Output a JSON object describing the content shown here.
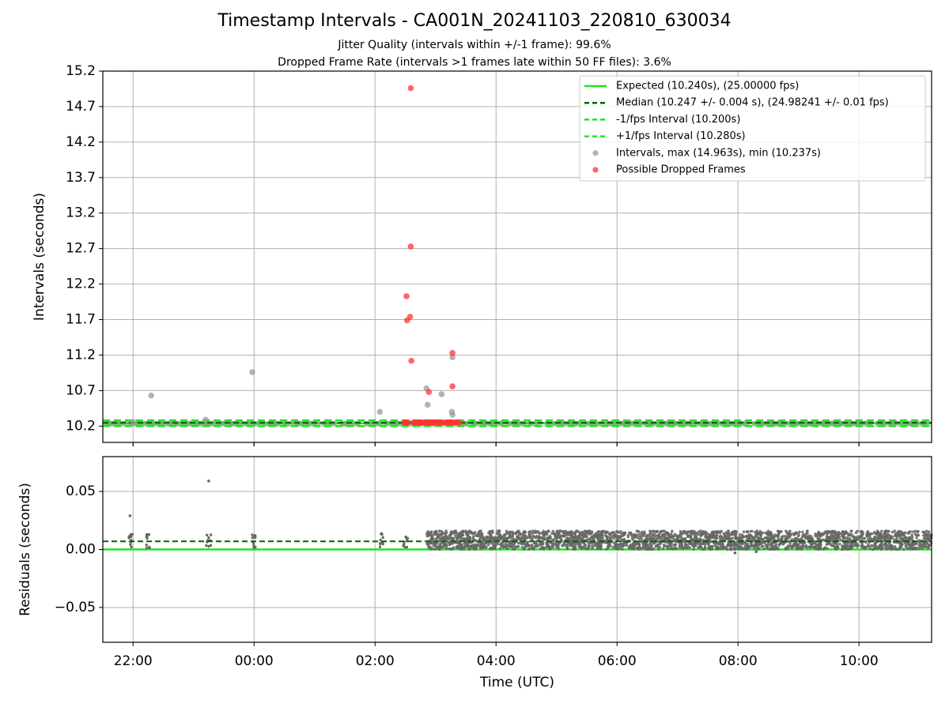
{
  "title": "Timestamp Intervals - CA001N_20241103_220810_630034",
  "subtitle_1": "Jitter Quality (intervals within +/-1 frame): 99.6%",
  "subtitle_2": "Dropped Frame Rate (intervals >1 frames late within 50 FF files): 3.6%",
  "colors": {
    "expected": "#19e619",
    "median": "#006400",
    "bounds": "#19e619",
    "intervals": "#999999",
    "dropped": "#ff3333",
    "residuals": "#666666"
  },
  "chart_data": [
    {
      "type": "scatter",
      "xlabel": "",
      "ylabel": "Intervals (seconds)",
      "xlim": [
        -2.5,
        11.2
      ],
      "ylim": [
        9.97,
        15.2
      ],
      "x_ticks": [
        -2,
        0,
        2,
        4,
        6,
        8,
        10
      ],
      "x_tick_labels": [
        "22:00",
        "00:00",
        "02:00",
        "04:00",
        "06:00",
        "08:00",
        "10:00"
      ],
      "y_ticks": [
        10.2,
        10.7,
        11.2,
        11.7,
        12.2,
        12.7,
        13.2,
        13.7,
        14.2,
        14.7,
        15.2
      ],
      "y_tick_labels": [
        "10.2",
        "10.7",
        "11.2",
        "11.7",
        "12.2",
        "12.7",
        "13.2",
        "13.7",
        "14.2",
        "14.7",
        "15.2"
      ],
      "grid": true,
      "legend_position": "top-right",
      "legend": [
        "Expected (10.240s), (25.00000 fps)",
        "Median (10.247 +/- 0.004 s), (24.98241 +/- 0.01 fps)",
        "-1/fps Interval (10.200s)",
        "+1/fps Interval (10.280s)",
        "Intervals, max (14.963s), min (10.237s)",
        "Possible Dropped Frames"
      ],
      "lines": {
        "expected": 10.24,
        "median": 10.247,
        "minus_1_fps": 10.2,
        "plus_1_fps": 10.28
      },
      "intervals_outliers": [
        {
          "x": -1.7,
          "y": 10.63
        },
        {
          "x": -2.0,
          "y": 10.26
        },
        {
          "x": -0.8,
          "y": 10.29
        },
        {
          "x": -0.03,
          "y": 10.96
        },
        {
          "x": 2.08,
          "y": 10.4
        },
        {
          "x": 2.85,
          "y": 10.73
        },
        {
          "x": 2.87,
          "y": 10.5
        },
        {
          "x": 3.1,
          "y": 10.65
        },
        {
          "x": 3.27,
          "y": 10.4
        },
        {
          "x": 3.28,
          "y": 10.36
        },
        {
          "x": 3.28,
          "y": 11.17
        }
      ],
      "dropped_frames": [
        {
          "x": 2.59,
          "y": 14.96
        },
        {
          "x": 2.59,
          "y": 12.73
        },
        {
          "x": 2.52,
          "y": 12.03
        },
        {
          "x": 2.58,
          "y": 11.74
        },
        {
          "x": 2.53,
          "y": 11.69
        },
        {
          "x": 3.28,
          "y": 11.23
        },
        {
          "x": 2.6,
          "y": 11.12
        },
        {
          "x": 3.28,
          "y": 10.76
        },
        {
          "x": 2.89,
          "y": 10.68
        }
      ],
      "dropped_frames_cluster": {
        "x_from": 2.48,
        "x_to": 3.42,
        "y": 10.25
      }
    },
    {
      "type": "scatter",
      "xlabel": "Time (UTC)",
      "ylabel": "Residuals (seconds)",
      "xlim": [
        -2.5,
        11.2
      ],
      "ylim": [
        -0.08,
        0.08
      ],
      "x_ticks": [
        -2,
        0,
        2,
        4,
        6,
        8,
        10
      ],
      "x_tick_labels": [
        "22:00",
        "00:00",
        "02:00",
        "04:00",
        "06:00",
        "08:00",
        "10:00"
      ],
      "y_ticks": [
        0.05,
        0.0,
        -0.05
      ],
      "y_tick_labels": [
        "0.05",
        "0.00",
        "−0.05"
      ],
      "grid": true,
      "lines": {
        "zero": 0.0,
        "median": 0.007
      },
      "residual_outliers": [
        {
          "x": -2.05,
          "y": 0.029
        },
        {
          "x": -0.75,
          "y": 0.059
        },
        {
          "x": 7.95,
          "y": -0.003
        },
        {
          "x": 8.3,
          "y": -0.002
        }
      ],
      "residual_band": {
        "x_from": 2.85,
        "x_to": 11.2,
        "y_from": 0.0,
        "y_to": 0.016
      }
    }
  ]
}
